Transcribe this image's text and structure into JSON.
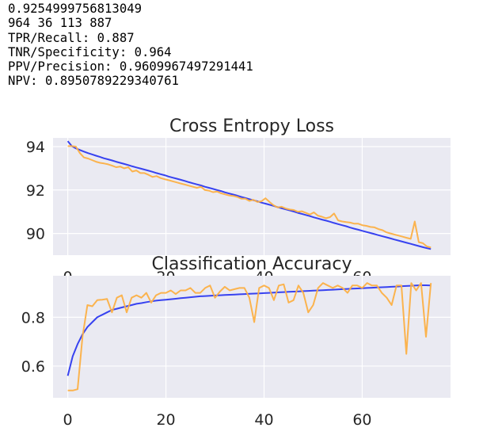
{
  "output_lines": [
    "0.9254999756813049",
    "964 36 113 887",
    "TPR/Recall: 0.887",
    "TNR/Specificity: 0.964",
    "PPV/Precision: 0.9609967497291441",
    "NPV: 0.8950789229340761"
  ],
  "colors": {
    "train": "#3742f0",
    "validation": "#fcb044",
    "plot_bg": "#eaeaf2",
    "grid": "#ffffff"
  },
  "chart_data": [
    {
      "type": "line",
      "title": "Cross Entropy Loss",
      "xlabel": "",
      "ylabel": "",
      "xlim": [
        -3,
        78
      ],
      "ylim": [
        89.0,
        94.4
      ],
      "xticks": [
        0,
        20,
        40,
        60
      ],
      "yticks": [
        90,
        92,
        94
      ],
      "grid": true,
      "series": [
        {
          "values": [
            94.25,
            94.02,
            93.92,
            93.84,
            93.77,
            93.7,
            93.64,
            93.58,
            93.52,
            93.46,
            93.41,
            93.36,
            93.3,
            93.25,
            93.2,
            93.15,
            93.09,
            93.04,
            92.99,
            92.94,
            92.89,
            92.84,
            92.78,
            92.73,
            92.68,
            92.62,
            92.57,
            92.52,
            92.47,
            92.42,
            92.36,
            92.31,
            92.26,
            92.21,
            92.15,
            92.1,
            92.05,
            92.0,
            91.95,
            91.89,
            91.84,
            91.79,
            91.74,
            91.68,
            91.63,
            91.58,
            91.53,
            91.48,
            91.42,
            91.37,
            91.32,
            91.27,
            91.21,
            91.16,
            91.11,
            91.06,
            91.01,
            90.95,
            90.9,
            90.85,
            90.8,
            90.74,
            90.69,
            90.64,
            90.59,
            90.54,
            90.48,
            90.43,
            90.38,
            90.33,
            90.27,
            90.22,
            90.17,
            90.12,
            90.07,
            90.02,
            89.97,
            89.92,
            89.87,
            89.82,
            89.77,
            89.72,
            89.67,
            89.62,
            89.57,
            89.52,
            89.47,
            89.42,
            89.37,
            89.32,
            89.28
          ]
        },
        {
          "values": [
            94.02,
            94.02,
            94.0,
            93.7,
            93.5,
            93.45,
            93.38,
            93.3,
            93.25,
            93.22,
            93.18,
            93.12,
            93.05,
            93.08,
            93.0,
            93.05,
            92.85,
            92.9,
            92.78,
            92.78,
            92.7,
            92.6,
            92.64,
            92.55,
            92.5,
            92.45,
            92.4,
            92.35,
            92.3,
            92.25,
            92.2,
            92.15,
            92.1,
            92.15,
            92.0,
            91.97,
            91.9,
            91.93,
            91.85,
            91.8,
            91.75,
            91.73,
            91.68,
            91.6,
            91.6,
            91.5,
            91.55,
            91.45,
            91.48,
            91.62,
            91.45,
            91.3,
            91.2,
            91.23,
            91.15,
            91.1,
            91.08,
            91.0,
            91.02,
            90.95,
            90.87,
            90.97,
            90.82,
            90.77,
            90.7,
            90.75,
            90.92,
            90.6,
            90.55,
            90.52,
            90.5,
            90.45,
            90.45,
            90.38,
            90.35,
            90.3,
            90.28,
            90.2,
            90.15,
            90.05,
            90.0,
            89.95,
            89.9,
            89.85,
            89.8,
            89.75,
            90.55,
            89.6,
            89.55,
            89.4,
            89.35
          ]
        }
      ]
    },
    {
      "type": "line",
      "title": "Classification Accuracy",
      "xlabel": "",
      "ylabel": "",
      "xlim": [
        -3,
        78
      ],
      "ylim": [
        0.47,
        0.97
      ],
      "xticks": [
        0,
        20,
        40,
        60
      ],
      "yticks": [
        0.6,
        0.8
      ],
      "grid": true,
      "series": [
        {
          "x": [
            0,
            1,
            2,
            3,
            4,
            5,
            6,
            7,
            8,
            9,
            10,
            11,
            12,
            13,
            14,
            15,
            16,
            17,
            18,
            19,
            20,
            21,
            22,
            23,
            24,
            25,
            26,
            27,
            28,
            29,
            30,
            31,
            32,
            33,
            34,
            35,
            36,
            37,
            38,
            39,
            40,
            41,
            42,
            43,
            44,
            45,
            46,
            47,
            48,
            49,
            50,
            51,
            52,
            53,
            54,
            55,
            56,
            57,
            58,
            59,
            60,
            61,
            62,
            63,
            64,
            65,
            66,
            67,
            68,
            69,
            70,
            71,
            72,
            73,
            74
          ],
          "values": [
            0.56,
            0.64,
            0.69,
            0.73,
            0.76,
            0.78,
            0.8,
            0.81,
            0.82,
            0.83,
            0.835,
            0.84,
            0.845,
            0.85,
            0.855,
            0.858,
            0.862,
            0.865,
            0.868,
            0.87,
            0.872,
            0.874,
            0.876,
            0.878,
            0.88,
            0.882,
            0.884,
            0.886,
            0.887,
            0.888,
            0.889,
            0.89,
            0.891,
            0.892,
            0.893,
            0.894,
            0.895,
            0.896,
            0.897,
            0.898,
            0.899,
            0.9,
            0.901,
            0.902,
            0.903,
            0.904,
            0.905,
            0.906,
            0.907,
            0.908,
            0.909,
            0.91,
            0.911,
            0.912,
            0.913,
            0.914,
            0.915,
            0.916,
            0.917,
            0.918,
            0.919,
            0.92,
            0.921,
            0.922,
            0.923,
            0.924,
            0.925,
            0.926,
            0.927,
            0.928,
            0.929,
            0.93,
            0.931,
            0.931,
            0.93
          ]
        },
        {
          "x": [
            0,
            1,
            2,
            3,
            4,
            5,
            6,
            7,
            8,
            9,
            10,
            11,
            12,
            13,
            14,
            15,
            16,
            17,
            18,
            19,
            20,
            21,
            22,
            23,
            24,
            25,
            26,
            27,
            28,
            29,
            30,
            31,
            32,
            33,
            34,
            35,
            36,
            37,
            38,
            39,
            40,
            41,
            42,
            43,
            44,
            45,
            46,
            47,
            48,
            49,
            50,
            51,
            52,
            53,
            54,
            55,
            56,
            57,
            58,
            59,
            60,
            61,
            62,
            63,
            64,
            65,
            66,
            67,
            68,
            69,
            70,
            71,
            72,
            73,
            74
          ],
          "values": [
            0.5,
            0.5,
            0.505,
            0.72,
            0.85,
            0.845,
            0.87,
            0.872,
            0.875,
            0.82,
            0.88,
            0.89,
            0.82,
            0.88,
            0.89,
            0.88,
            0.9,
            0.86,
            0.89,
            0.9,
            0.9,
            0.91,
            0.895,
            0.91,
            0.91,
            0.92,
            0.9,
            0.9,
            0.92,
            0.93,
            0.88,
            0.905,
            0.925,
            0.91,
            0.915,
            0.92,
            0.92,
            0.88,
            0.78,
            0.92,
            0.93,
            0.92,
            0.87,
            0.93,
            0.935,
            0.86,
            0.87,
            0.93,
            0.9,
            0.82,
            0.85,
            0.92,
            0.94,
            0.93,
            0.92,
            0.93,
            0.92,
            0.9,
            0.93,
            0.93,
            0.92,
            0.94,
            0.93,
            0.93,
            0.9,
            0.88,
            0.85,
            0.93,
            0.93,
            0.65,
            0.94,
            0.91,
            0.94,
            0.72,
            0.94
          ]
        }
      ]
    }
  ]
}
